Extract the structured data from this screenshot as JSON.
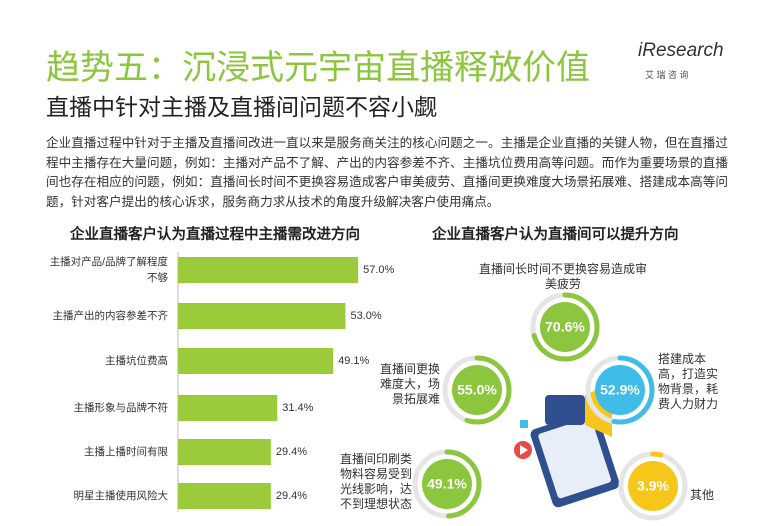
{
  "header": {
    "title": "趋势五：沉浸式元宇宙直播释放价值",
    "subtitle": "直播中针对主播及直播间问题不容小觑",
    "logo": "iResearch",
    "logo_sub": "艾 瑞 咨 询"
  },
  "body": "企业直播过程中针对于主播及直播间改进一直以来是服务商关注的核心问题之一。主播是企业直播的关键人物，但在直播过程中主播存在大量问题，例如：主播对产品不了解、产出的内容参差不齐、主播坑位费用高等问题。而作为重要场景的直播间也存在相应的问题，例如：直播间长时间不更换容易造成客户审美疲劳、直播间更换难度大场景拓展难、搭建成本高等问题，针对客户提出的核心诉求，服务商力求从技术的角度升级解决客户使用痛点。",
  "chart_data": [
    {
      "type": "bar",
      "title": "企业直播客户认为直播过程中主播需改进方向",
      "categories": [
        "主播对产品/品牌了解程度不够",
        "主播产出的内容参差不齐",
        "主播坑位费高",
        "主播形象与品牌不符",
        "主播上播时间有限",
        "明星主播使用风险大"
      ],
      "values": [
        57.0,
        53.0,
        49.1,
        31.4,
        29.4,
        29.4
      ],
      "value_labels": [
        "57.0%",
        "53.0%",
        "49.1%",
        "31.4%",
        "29.4%",
        "29.4%"
      ],
      "color": "#9bcb3b"
    },
    {
      "type": "ring",
      "title": "企业直播客户认为直播间可以提升方向",
      "categories": [
        "直播间长时间不更换容易造成审美疲劳",
        "直播间更换难度大，场景拓展难",
        "搭建成本高，打造实物背景，耗费人力财力",
        "直播间印刷类物料容易受到光线影响，达不到理想状态",
        "其他"
      ],
      "values": [
        70.6,
        55.0,
        52.9,
        49.1,
        3.9
      ],
      "value_labels": [
        "70.6%",
        "55.0%",
        "52.9%",
        "49.1%",
        "3.9%"
      ],
      "colors": [
        "#8cc63f",
        "#8cc63f",
        "#3fbde8",
        "#8cc63f",
        "#f6c61b"
      ]
    }
  ]
}
